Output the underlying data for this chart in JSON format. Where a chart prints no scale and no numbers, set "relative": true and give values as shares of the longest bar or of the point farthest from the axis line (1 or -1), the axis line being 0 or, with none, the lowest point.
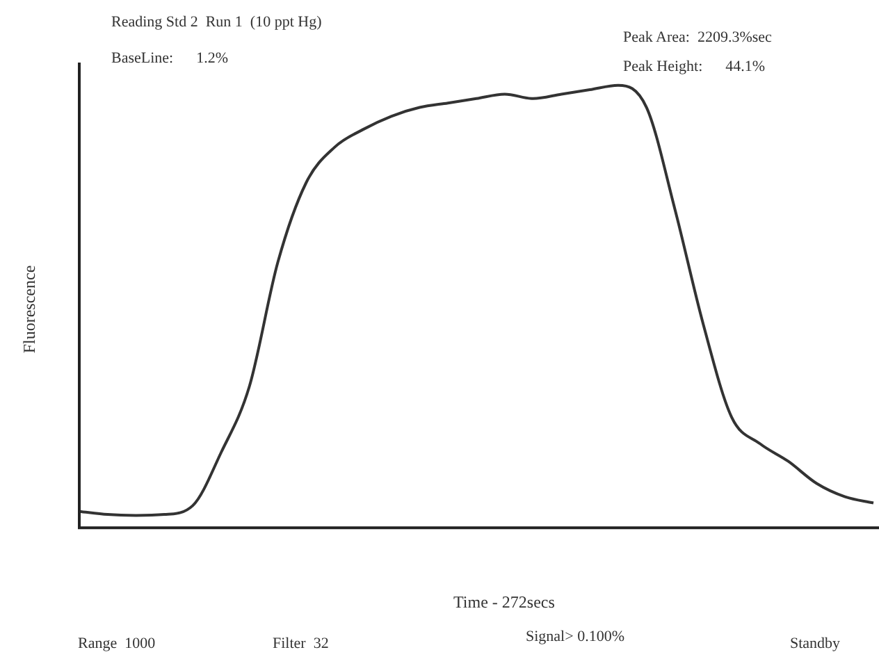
{
  "chart_data": {
    "type": "line",
    "relative": true,
    "title": "Reading Std 2  Run 1  (10 ppt Hg)",
    "xlabel": "Time - 272secs",
    "ylabel": "Fluorescence",
    "annotations": [
      "BaseLine:      1.2%",
      "Peak Area:  2209.3%sec",
      "Peak Height:      44.1%",
      "Range  1000",
      "Filter  32",
      "Signal> 0.100%",
      "Standby"
    ],
    "categories": [
      null,
      null,
      null,
      null,
      null,
      null,
      null,
      null,
      null,
      null,
      null,
      null,
      null,
      null,
      null,
      null,
      null,
      null,
      null,
      null,
      null,
      null,
      null,
      null,
      null,
      null,
      null,
      null,
      null
    ],
    "series": [
      {
        "color": "#333333",
        "values": [
          0.037,
          0.03,
          0.028,
          0.03,
          0.05,
          0.17,
          0.32,
          0.6,
          0.78,
          0.86,
          0.9,
          0.93,
          0.95,
          0.96,
          0.97,
          0.98,
          0.97,
          0.98,
          0.99,
          1.0,
          0.95,
          0.72,
          0.46,
          0.25,
          0.19,
          0.15,
          0.1,
          0.07,
          0.056
        ]
      }
    ],
    "legend": false,
    "grid": false,
    "marker": "none",
    "line_style": "solid"
  }
}
